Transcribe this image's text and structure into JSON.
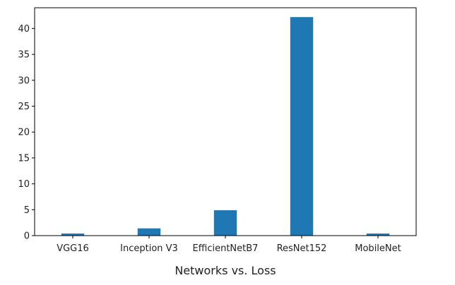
{
  "chart_data": {
    "type": "bar",
    "categories": [
      "VGG16",
      "Inception V3",
      "EfficientNetB7",
      "ResNet152",
      "MobileNet"
    ],
    "values": [
      0.4,
      1.4,
      4.9,
      42.2,
      0.4
    ],
    "title": "",
    "xlabel": "Networks vs. Loss",
    "ylabel": "",
    "ylim": [
      0,
      44
    ],
    "yticks": [
      0,
      5,
      10,
      15,
      20,
      25,
      30,
      35,
      40
    ],
    "grid": false,
    "bar_color": "#1f77b4"
  }
}
